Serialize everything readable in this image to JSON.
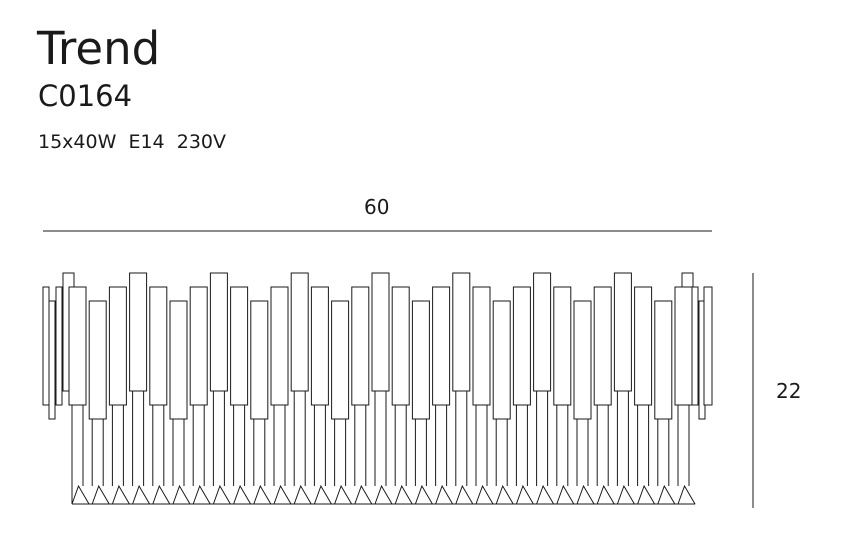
{
  "product": {
    "name": "Trend",
    "code": "C0164",
    "specs": "15x40W  E14  230V"
  },
  "dimensions": {
    "width": "60",
    "height": "22"
  },
  "colors": {
    "line": "#1a1a1a",
    "background": "#ffffff"
  }
}
